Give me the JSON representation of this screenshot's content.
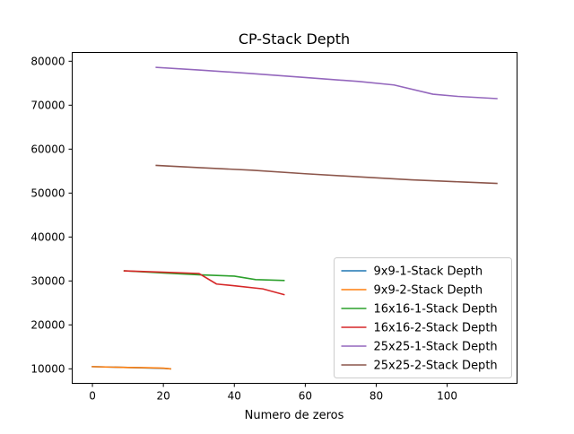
{
  "chart_data": {
    "type": "line",
    "title": "CP-Stack Depth",
    "xlabel": "Numero de zeros",
    "ylabel": "",
    "xlim": [
      -5.7,
      119.7
    ],
    "ylim": [
      6700,
      82000
    ],
    "xticks": [
      0,
      20,
      40,
      60,
      80,
      100
    ],
    "xtick_labels": [
      "0",
      "20",
      "40",
      "60",
      "80",
      "100"
    ],
    "yticks": [
      10000,
      20000,
      30000,
      40000,
      50000,
      60000,
      70000,
      80000
    ],
    "ytick_labels": [
      "10000",
      "20000",
      "30000",
      "40000",
      "50000",
      "60000",
      "70000",
      "80000"
    ],
    "grid": false,
    "legend_position": "lower right",
    "series": [
      {
        "name": "9x9-1-Stack Depth",
        "color": "#1f77b4",
        "x": [
          0,
          5,
          10,
          15,
          20,
          22
        ],
        "y": [
          10500,
          10400,
          10300,
          10200,
          10100,
          10000
        ]
      },
      {
        "name": "9x9-2-Stack Depth",
        "color": "#ff7f0e",
        "x": [
          0,
          5,
          10,
          15,
          20,
          22
        ],
        "y": [
          10500,
          10400,
          10300,
          10250,
          10150,
          10000
        ]
      },
      {
        "name": "16x16-1-Stack Depth",
        "color": "#2ca02c",
        "x": [
          9,
          20,
          30,
          40,
          46,
          54
        ],
        "y": [
          32300,
          31800,
          31400,
          31100,
          30300,
          30100
        ]
      },
      {
        "name": "16x16-2-Stack Depth",
        "color": "#d62728",
        "x": [
          9,
          20,
          30,
          35,
          40,
          48,
          54
        ],
        "y": [
          32300,
          32000,
          31700,
          29300,
          28900,
          28200,
          26900
        ]
      },
      {
        "name": "25x25-1-Stack Depth",
        "color": "#9467bd",
        "x": [
          18,
          30,
          45,
          60,
          75,
          85,
          96,
          103,
          114
        ],
        "y": [
          78600,
          78000,
          77200,
          76300,
          75400,
          74600,
          72500,
          72000,
          71500
        ]
      },
      {
        "name": "25x25-2-Stack Depth",
        "color": "#8c564b",
        "x": [
          18,
          30,
          45,
          60,
          75,
          90,
          105,
          114
        ],
        "y": [
          56300,
          55800,
          55200,
          54400,
          53700,
          53000,
          52500,
          52200
        ]
      }
    ]
  }
}
